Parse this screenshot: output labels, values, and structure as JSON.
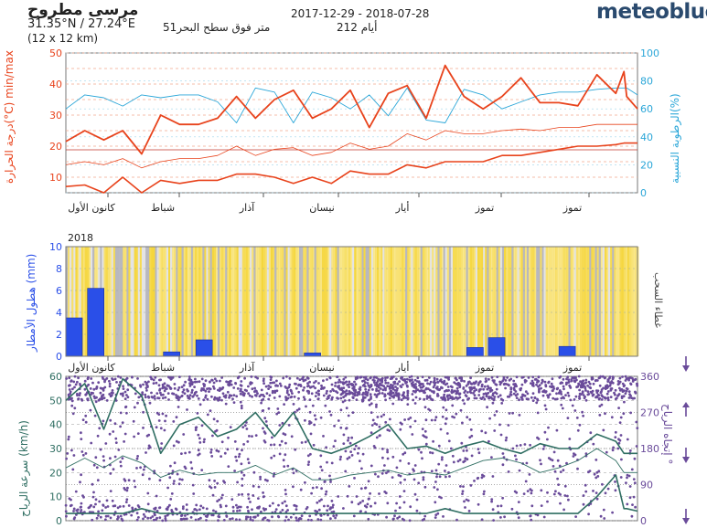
{
  "header": {
    "location": "مرسى مطروح",
    "coords": "31.35°N / 27.24°E",
    "altitude": "51متر فوق سطح البحر",
    "grid": "(12 x 12 km)",
    "date_range": "2017-12-29 - 2018-07-28",
    "days": "أيام 212",
    "brand": "meteoblue"
  },
  "colors": {
    "temp": "#e8431c",
    "humidity": "#2aa6d8",
    "precip": "#2a4fe8",
    "sun": "#f5d63c",
    "wind": "#2f6e62",
    "direction": "#6a4b9a"
  },
  "months": [
    "كانون الأول",
    "شباط",
    "آذار",
    "نيسان",
    "أيار",
    "تموز",
    "تموز"
  ],
  "year": "2018",
  "chart_data": [
    {
      "type": "line",
      "name": "temperature-humidity",
      "ylabel": "درجة الحرارة(°C) min/max",
      "y2label": "الرطوبة النسبية(%)",
      "ylim": [
        5,
        50
      ],
      "yticks": [
        10,
        20,
        30,
        40,
        50
      ],
      "y2lim": [
        0,
        100
      ],
      "y2ticks": [
        0,
        20,
        40,
        60,
        80,
        100
      ],
      "x_days": [
        0,
        7,
        14,
        21,
        28,
        35,
        42,
        49,
        56,
        63,
        70,
        77,
        84,
        91,
        98,
        105,
        112,
        119,
        126,
        133,
        140,
        147,
        154,
        161,
        168,
        175,
        182,
        189,
        196,
        203,
        206,
        207,
        211
      ],
      "series": [
        {
          "key": "tmax",
          "values": [
            21.5,
            25,
            22,
            25,
            17.5,
            30,
            27,
            27,
            29,
            36,
            29,
            35,
            38,
            29,
            32,
            38,
            26,
            37,
            39.5,
            29,
            46,
            36,
            32,
            36,
            42,
            34,
            34,
            33,
            43,
            37,
            44,
            36,
            32
          ]
        },
        {
          "key": "tmean",
          "values": [
            14,
            15,
            14,
            16,
            13,
            15,
            16,
            16,
            17,
            20,
            17,
            19,
            19.5,
            17,
            18,
            21,
            19,
            20,
            24,
            22,
            25,
            24,
            24,
            25,
            25.5,
            25,
            26,
            26,
            27,
            27,
            27,
            27,
            27
          ]
        },
        {
          "key": "tmin",
          "values": [
            7,
            7.5,
            5,
            10,
            5,
            9,
            8,
            9,
            9,
            11,
            11,
            10,
            8,
            10,
            8,
            12,
            11,
            11,
            14,
            13,
            15,
            15,
            15,
            17,
            17,
            18,
            19,
            20,
            20,
            20.5,
            21,
            21,
            21
          ]
        },
        {
          "key": "humidity",
          "values": [
            60,
            70,
            68,
            62,
            70,
            68,
            70,
            70,
            65,
            50,
            75,
            72,
            50,
            72,
            68,
            60,
            70,
            55,
            75,
            52,
            50,
            74,
            70,
            60,
            65,
            70,
            72,
            72,
            74,
            75,
            75,
            75,
            70
          ]
        }
      ]
    },
    {
      "type": "bar",
      "name": "precipitation",
      "ylabel": "هطول الأمطار (mm)",
      "y2label": "غطاء السحب",
      "ylim": [
        0,
        10
      ],
      "yticks": [
        0,
        2,
        4,
        6,
        8,
        10
      ],
      "x_days": [
        0,
        8,
        36,
        48,
        88,
        148,
        156,
        182
      ],
      "values": [
        3.5,
        6.2,
        0.4,
        1.5,
        0.3,
        0.8,
        1.7,
        0.9
      ]
    },
    {
      "type": "line",
      "name": "wind",
      "ylabel": "سرعة الرياح (km/h)",
      "y2label": "إتجاه الرياح °",
      "ylim": [
        0,
        60
      ],
      "yticks": [
        0,
        10,
        20,
        30,
        40,
        50,
        60
      ],
      "y2lim": [
        0,
        360
      ],
      "y2ticks": [
        0,
        90,
        180,
        270,
        360
      ],
      "x_days": [
        0,
        7,
        14,
        21,
        28,
        35,
        42,
        49,
        56,
        63,
        70,
        77,
        84,
        91,
        98,
        105,
        112,
        119,
        126,
        133,
        140,
        147,
        154,
        161,
        168,
        175,
        182,
        189,
        196,
        203,
        206,
        207,
        211
      ],
      "series": [
        {
          "key": "wmax",
          "values": [
            50,
            57,
            38,
            59,
            52,
            28,
            40,
            43,
            35,
            38,
            45,
            35,
            45,
            30,
            28,
            31,
            35,
            40,
            30,
            31,
            28,
            31,
            33,
            30,
            28,
            32,
            30,
            30,
            36,
            33,
            28,
            28,
            28
          ]
        },
        {
          "key": "wmean",
          "values": [
            22,
            26,
            22,
            27,
            24,
            18,
            21,
            19,
            20,
            20,
            23,
            19,
            22,
            17,
            17,
            19,
            20,
            21,
            19,
            20,
            19,
            22,
            25,
            26,
            24,
            20,
            22,
            25,
            30,
            25,
            20,
            20,
            20
          ]
        },
        {
          "key": "wmin",
          "values": [
            3,
            3,
            3,
            3,
            5,
            3,
            3,
            3,
            3,
            3,
            3,
            3,
            3,
            3,
            3,
            3,
            3,
            3,
            3,
            3,
            5,
            3,
            3,
            3,
            3,
            3,
            3,
            3,
            10,
            19,
            5,
            5,
            4
          ]
        }
      ]
    }
  ]
}
